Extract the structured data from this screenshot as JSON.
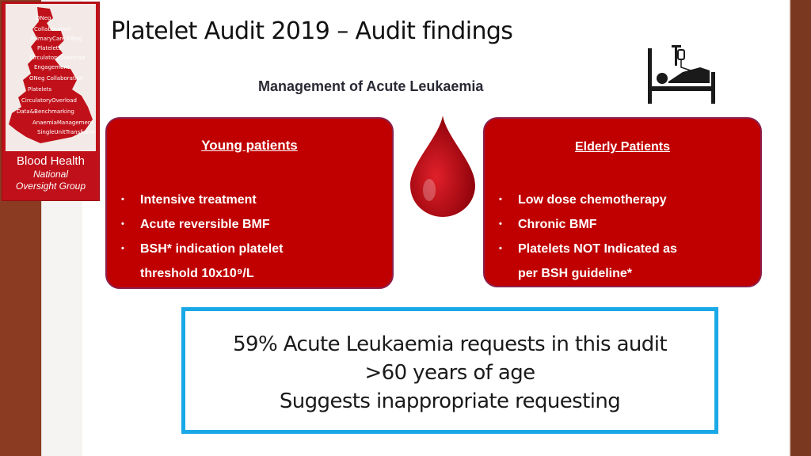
{
  "colors": {
    "card_fill": "#c00000",
    "callout_border": "#1aa9e6",
    "brand_red": "#c0111a",
    "stripe_brown": "#8a3b22"
  },
  "logo": {
    "line1": "Blood Health",
    "line2": "National",
    "line3": "Oversight Group",
    "word_cloud": [
      "Collaboration",
      "PrimaryCare",
      "ONeg",
      "Platelets",
      "CirculatoryOverload",
      "Engagement",
      "Data&Benchmarking",
      "AnaemiaManagement",
      "SingleUnitTransfusion"
    ]
  },
  "header": {
    "title": "Platelet Audit 2019 –  Audit findings",
    "subtitle": "Management of Acute Leukaemia",
    "bed_icon": "hospital-bed-icon"
  },
  "drop_icon": "blood-drop-icon",
  "young": {
    "heading": "Young patients",
    "items": [
      "Intensive treatment",
      "Acute reversible BMF",
      "BSH* indication platelet",
      "threshold 10x10⁹/L"
    ]
  },
  "elderly": {
    "heading": "Elderly Patients",
    "items": [
      "Low dose chemotherapy",
      "Chronic BMF",
      "Platelets NOT Indicated as",
      "per BSH guideline*"
    ]
  },
  "callout": {
    "line1": "59% Acute Leukaemia requests in this audit",
    "line2": ">60 years of age",
    "line3": "Suggests inappropriate requesting"
  }
}
